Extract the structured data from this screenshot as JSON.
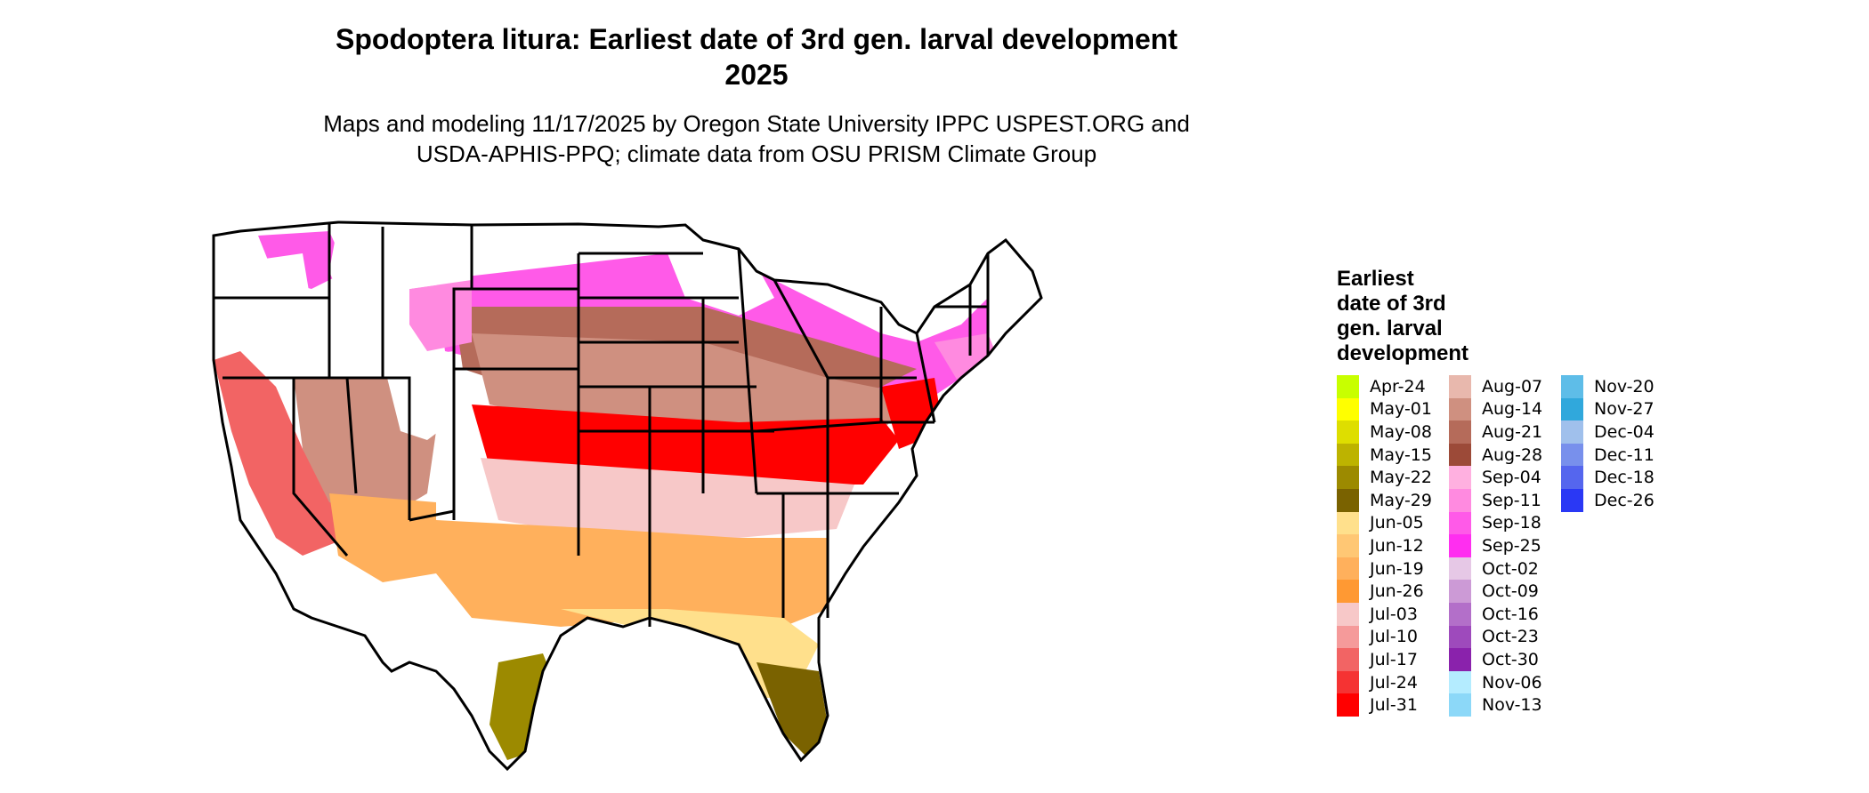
{
  "title_line1": "Spodoptera litura: Earliest date of 3rd gen. larval development",
  "title_line2": "2025",
  "subtitle_line1": "Maps and modeling 11/17/2025 by Oregon State University IPPC USPEST.ORG and",
  "subtitle_line2": "USDA-APHIS-PPQ; climate data from OSU PRISM Climate Group",
  "legend": {
    "title_lines": [
      "Earliest",
      "date of 3rd",
      "gen. larval",
      "development"
    ],
    "items": [
      {
        "label": "Apr-24",
        "color": "#c8ff00"
      },
      {
        "label": "May-01",
        "color": "#ffff00"
      },
      {
        "label": "May-08",
        "color": "#dede00"
      },
      {
        "label": "May-15",
        "color": "#bdb300"
      },
      {
        "label": "May-22",
        "color": "#9c8a00"
      },
      {
        "label": "May-29",
        "color": "#7a6200"
      },
      {
        "label": "Jun-05",
        "color": "#ffe08c"
      },
      {
        "label": "Jun-12",
        "color": "#ffc774"
      },
      {
        "label": "Jun-19",
        "color": "#ffb05c"
      },
      {
        "label": "Jun-26",
        "color": "#ff9933"
      },
      {
        "label": "Jul-03",
        "color": "#f7c8c8"
      },
      {
        "label": "Jul-10",
        "color": "#f59a9a"
      },
      {
        "label": "Jul-17",
        "color": "#f26464"
      },
      {
        "label": "Jul-24",
        "color": "#f53333"
      },
      {
        "label": "Jul-31",
        "color": "#ff0000"
      },
      {
        "label": "Aug-07",
        "color": "#e8b8ad"
      },
      {
        "label": "Aug-14",
        "color": "#cf9080"
      },
      {
        "label": "Aug-21",
        "color": "#b56b5a"
      },
      {
        "label": "Aug-28",
        "color": "#9c4a38"
      },
      {
        "label": "Sep-04",
        "color": "#ffb0e0"
      },
      {
        "label": "Sep-11",
        "color": "#ff8ae0"
      },
      {
        "label": "Sep-18",
        "color": "#ff5ae8"
      },
      {
        "label": "Sep-25",
        "color": "#ff2ef0"
      },
      {
        "label": "Oct-02",
        "color": "#e6c8e6"
      },
      {
        "label": "Oct-09",
        "color": "#cc9ad6"
      },
      {
        "label": "Oct-16",
        "color": "#b36fc9"
      },
      {
        "label": "Oct-23",
        "color": "#9e4abc"
      },
      {
        "label": "Oct-30",
        "color": "#8a22ac"
      },
      {
        "label": "Nov-06",
        "color": "#b4ecff"
      },
      {
        "label": "Nov-13",
        "color": "#8cd8f8"
      },
      {
        "label": "Nov-20",
        "color": "#5ebde8"
      },
      {
        "label": "Nov-27",
        "color": "#30a8dc"
      },
      {
        "label": "Dec-04",
        "color": "#a0c0ec"
      },
      {
        "label": "Dec-11",
        "color": "#7890ec"
      },
      {
        "label": "Dec-18",
        "color": "#5566ee"
      },
      {
        "label": "Dec-26",
        "color": "#2a38f5"
      }
    ]
  },
  "map": {
    "colors": {
      "background_land": "#ffffff",
      "border": "#000000"
    }
  }
}
